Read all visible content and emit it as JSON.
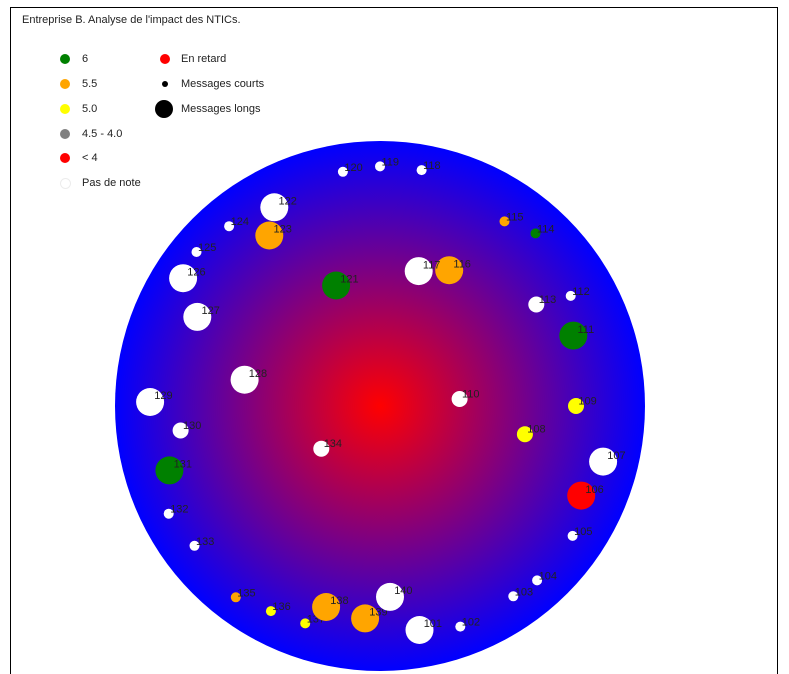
{
  "chart_data": {
    "type": "scatter",
    "title": "Entreprise B. Analyse de l'impact des NTICs.",
    "legend": {
      "placement": "top-left",
      "grades": [
        {
          "label": "6",
          "color": "#008000"
        },
        {
          "label": "5.5",
          "color": "#ffa500"
        },
        {
          "label": "5.0",
          "color": "#ffff00"
        },
        {
          "label": "4.5 - 4.0",
          "color": "#808080"
        },
        {
          "label": "< 4",
          "color": "#ff0000"
        },
        {
          "label": "Pas de note",
          "color": "#ffffff"
        }
      ],
      "other": [
        {
          "label": "En retard",
          "color": "#ff0000",
          "marker": "dot"
        },
        {
          "label": "Messages courts",
          "color": "#000000",
          "marker": "small"
        },
        {
          "label": "Messages longs",
          "color": "#000000",
          "marker": "large"
        }
      ]
    },
    "gradient": {
      "center_color": "#ff0000",
      "edge_color": "#0000ff"
    },
    "points": [
      {
        "id": "101",
        "angle": 190,
        "dist": 0.94,
        "size": "large",
        "color": "#ffffff"
      },
      {
        "id": "102",
        "angle": 200,
        "dist": 0.97,
        "size": "small",
        "color": "#ffffff"
      },
      {
        "id": "103",
        "angle": 215,
        "dist": 0.96,
        "size": "small",
        "color": "#ffffff"
      },
      {
        "id": "104",
        "angle": 222,
        "dist": 0.97,
        "size": "small",
        "color": "#ffffff"
      },
      {
        "id": "105",
        "angle": 236,
        "dist": 0.96,
        "size": "small",
        "color": "#ffffff"
      },
      {
        "id": "106",
        "angle": 246,
        "dist": 0.91,
        "size": "large",
        "color": "#ff0000"
      },
      {
        "id": "107",
        "angle": 256,
        "dist": 0.95,
        "size": "large",
        "color": "#ffffff"
      },
      {
        "id": "108",
        "angle": 259,
        "dist": 0.61,
        "size": "medium",
        "color": "#ffff00"
      },
      {
        "id": "109",
        "angle": 270,
        "dist": 0.81,
        "size": "medium",
        "color": "#ffff00"
      },
      {
        "id": "110",
        "angle": 275,
        "dist": 0.33,
        "size": "medium",
        "color": "#ffffff"
      },
      {
        "id": "111",
        "angle": 290,
        "dist": 0.85,
        "size": "large",
        "color": "#008000"
      },
      {
        "id": "112",
        "angle": 300,
        "dist": 0.91,
        "size": "small",
        "color": "#ffffff"
      },
      {
        "id": "113",
        "angle": 303,
        "dist": 0.77,
        "size": "medium",
        "color": "#ffffff"
      },
      {
        "id": "114",
        "angle": 318,
        "dist": 0.96,
        "size": "small",
        "color": "#008000"
      },
      {
        "id": "115",
        "angle": 326,
        "dist": 0.92,
        "size": "small",
        "color": "#ffa500"
      },
      {
        "id": "116",
        "angle": 333,
        "dist": 0.63,
        "size": "large",
        "color": "#ffa500"
      },
      {
        "id": "117",
        "angle": 344,
        "dist": 0.58,
        "size": "large",
        "color": "#ffffff"
      },
      {
        "id": "118",
        "angle": 350,
        "dist": 0.99,
        "size": "small",
        "color": "#ffffff"
      },
      {
        "id": "119",
        "angle": 0,
        "dist": 0.99,
        "size": "small",
        "color": "#ffffff"
      },
      {
        "id": "120",
        "angle": 9,
        "dist": 0.98,
        "size": "small",
        "color": "#ffffff"
      },
      {
        "id": "121",
        "angle": 20,
        "dist": 0.53,
        "size": "large",
        "color": "#008000"
      },
      {
        "id": "122",
        "angle": 28,
        "dist": 0.93,
        "size": "large",
        "color": "#ffffff"
      },
      {
        "id": "123",
        "angle": 33,
        "dist": 0.84,
        "size": "large",
        "color": "#ffa500"
      },
      {
        "id": "124",
        "angle": 40,
        "dist": 0.97,
        "size": "small",
        "color": "#ffffff"
      },
      {
        "id": "125",
        "angle": 50,
        "dist": 0.99,
        "size": "small",
        "color": "#ffffff"
      },
      {
        "id": "126",
        "angle": 57,
        "dist": 0.97,
        "size": "large",
        "color": "#ffffff"
      },
      {
        "id": "127",
        "angle": 64,
        "dist": 0.84,
        "size": "large",
        "color": "#ffffff"
      },
      {
        "id": "128",
        "angle": 79,
        "dist": 0.57,
        "size": "large",
        "color": "#ffffff"
      },
      {
        "id": "129",
        "angle": 89,
        "dist": 0.95,
        "size": "large",
        "color": "#ffffff"
      },
      {
        "id": "130",
        "angle": 97,
        "dist": 0.83,
        "size": "medium",
        "color": "#ffffff"
      },
      {
        "id": "131",
        "angle": 107,
        "dist": 0.91,
        "size": "large",
        "color": "#008000"
      },
      {
        "id": "132",
        "angle": 117,
        "dist": 0.98,
        "size": "small",
        "color": "#ffffff"
      },
      {
        "id": "133",
        "angle": 127,
        "dist": 0.96,
        "size": "small",
        "color": "#ffffff"
      },
      {
        "id": "134",
        "angle": 126,
        "dist": 0.3,
        "size": "medium",
        "color": "#ffffff"
      },
      {
        "id": "135",
        "angle": 143,
        "dist": 0.99,
        "size": "small",
        "color": "#ffa500"
      },
      {
        "id": "136",
        "angle": 152,
        "dist": 0.96,
        "size": "small",
        "color": "#ffff00"
      },
      {
        "id": "137",
        "angle": 161,
        "dist": 0.95,
        "size": "small",
        "color": "#ffff00"
      },
      {
        "id": "138",
        "angle": 165,
        "dist": 0.86,
        "size": "large",
        "color": "#ffa500"
      },
      {
        "id": "139",
        "angle": 176,
        "dist": 0.88,
        "size": "large",
        "color": "#ffa500"
      },
      {
        "id": "140",
        "angle": 183,
        "dist": 0.79,
        "size": "large",
        "color": "#ffffff"
      }
    ]
  }
}
